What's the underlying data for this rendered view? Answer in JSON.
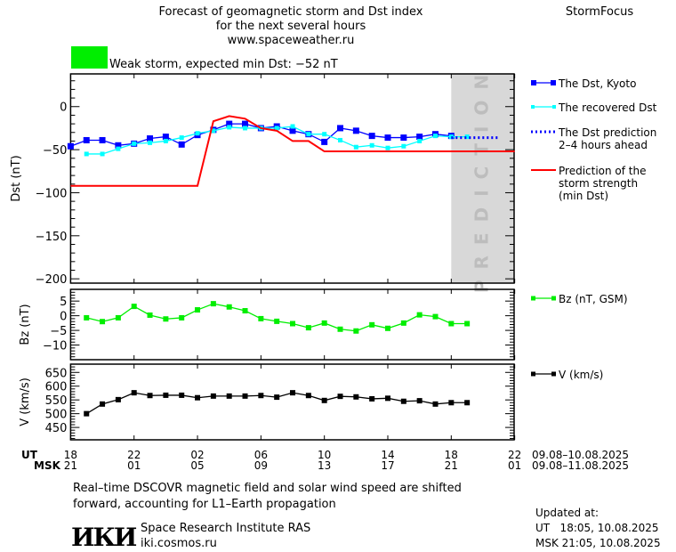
{
  "header": {
    "title_lines": [
      "Forecast of geomagnetic storm and Dst index",
      "for the next several hours",
      "www.spaceweather.ru"
    ],
    "brand": "StormFocus",
    "status_text": "Weak storm, expected min Dst: −52 nT",
    "status_color": "#00ee00"
  },
  "chart_data": [
    {
      "type": "line",
      "ylabel": "Dst (nT)",
      "ylim": [
        -205,
        38
      ],
      "yticks": [
        0,
        -50,
        -100,
        -150,
        -200
      ],
      "prediction_zone_label": "PREDICTION",
      "prediction_zone_start": "10.08 18:00",
      "times": [
        "09.08 18:00",
        "09.08 19:00",
        "09.08 20:00",
        "09.08 21:00",
        "09.08 22:00",
        "09.08 23:00",
        "10.08 00:00",
        "10.08 01:00",
        "10.08 02:00",
        "10.08 03:00",
        "10.08 04:00",
        "10.08 05:00",
        "10.08 06:00",
        "10.08 07:00",
        "10.08 08:00",
        "10.08 09:00",
        "10.08 10:00",
        "10.08 11:00",
        "10.08 12:00",
        "10.08 13:00",
        "10.08 14:00",
        "10.08 15:00",
        "10.08 16:00",
        "10.08 17:00",
        "10.08 18:00",
        "10.08 19:00",
        "10.08 20:00",
        "10.08 21:00",
        "10.08 22:00"
      ],
      "series": [
        {
          "name": "The Dst, Kyoto",
          "color": "#0000ff",
          "style": "line-square",
          "values": [
            -46,
            -39,
            -39,
            -45,
            -43,
            -37,
            -35,
            -44,
            -33,
            -27,
            -20,
            -20,
            -25,
            -23,
            -28,
            -32,
            -41,
            -25,
            -28,
            -34,
            -36,
            -36,
            -35,
            -32,
            -34,
            null,
            null,
            null,
            null
          ]
        },
        {
          "name": "The recovered Dst",
          "color": "#00ffff",
          "style": "line-square-small",
          "values": [
            null,
            -55,
            -55,
            -49,
            -43,
            -42,
            -40,
            -36,
            -31,
            -28,
            -24,
            -25,
            -25,
            -25,
            -23,
            -32,
            -32,
            -39,
            -47,
            -45,
            -48,
            -46,
            -40,
            -34,
            -35,
            -35,
            null,
            null,
            null
          ]
        },
        {
          "name": "The Dst prediction 2–4 hours ahead",
          "legend_lines": [
            "The Dst prediction",
            "2–4 hours ahead"
          ],
          "color": "#0000ff",
          "style": "dotted",
          "values": [
            null,
            null,
            null,
            null,
            null,
            null,
            null,
            null,
            null,
            null,
            null,
            null,
            null,
            null,
            null,
            null,
            null,
            null,
            null,
            null,
            null,
            null,
            null,
            null,
            -36,
            -36,
            -36,
            -36,
            null
          ]
        },
        {
          "name": "Prediction of the storm strength (min Dst)",
          "legend_lines": [
            "Prediction of the",
            "storm strength",
            "(min Dst)"
          ],
          "color": "#ff0000",
          "style": "line",
          "values": [
            -92,
            -92,
            -92,
            -92,
            -92,
            -92,
            -92,
            -92,
            -92,
            -17,
            -11,
            -14,
            -25,
            -28,
            -40,
            -40,
            -52,
            -52,
            -52,
            -52,
            -52,
            -52,
            -52,
            -52,
            -52,
            -52,
            -52,
            -52,
            -52
          ]
        }
      ]
    },
    {
      "type": "line",
      "ylabel": "Bz (nT)",
      "ylim": [
        -15,
        9
      ],
      "yticks": [
        5,
        0,
        -5,
        -10
      ],
      "series": [
        {
          "name": "Bz (nT, GSM)",
          "color": "#00ee00",
          "values": [
            null,
            -0.7,
            -2,
            -0.7,
            3.2,
            0.2,
            -1.1,
            -0.7,
            2,
            4.1,
            3,
            1.7,
            -1,
            -1.9,
            -2.7,
            -4.1,
            -2.5,
            -4.6,
            -5.2,
            -3.1,
            -4.3,
            -2.5,
            0.3,
            -0.3,
            -2.7,
            -2.7,
            null,
            null,
            null
          ]
        }
      ]
    },
    {
      "type": "line",
      "ylabel": "V (km/s)",
      "ylim": [
        405,
        680
      ],
      "yticks": [
        650,
        600,
        550,
        500,
        450
      ],
      "series": [
        {
          "name": "V (km/s)",
          "color": "#000000",
          "values": [
            null,
            500,
            535,
            551,
            576,
            566,
            567,
            567,
            558,
            564,
            564,
            564,
            566,
            560,
            576,
            566,
            548,
            563,
            561,
            554,
            556,
            545,
            547,
            535,
            540,
            540,
            null,
            null,
            null
          ]
        }
      ]
    }
  ],
  "xaxis": {
    "ut_label": "UT",
    "msk_label": "MSK",
    "ut_ticks": [
      "18",
      "22",
      "02",
      "06",
      "10",
      "14",
      "18",
      "22"
    ],
    "msk_ticks": [
      "21",
      "01",
      "05",
      "09",
      "13",
      "17",
      "21",
      "01"
    ],
    "ut_range": "09.08–10.08.2025",
    "msk_range": "09.08–11.08.2025"
  },
  "footer": {
    "note_lines": [
      "Real–time DSCOVR magnetic field and solar wind speed are shifted",
      "forward, accounting for L1–Earth propagation"
    ],
    "logo_text": "ИКИ",
    "institute": "Space Research Institute RAS",
    "website": "iki.cosmos.ru",
    "updated_label": "Updated at:",
    "updated_ut": "UT   18:05, 10.08.2025",
    "updated_msk": "MSK 21:05, 10.08.2025"
  }
}
